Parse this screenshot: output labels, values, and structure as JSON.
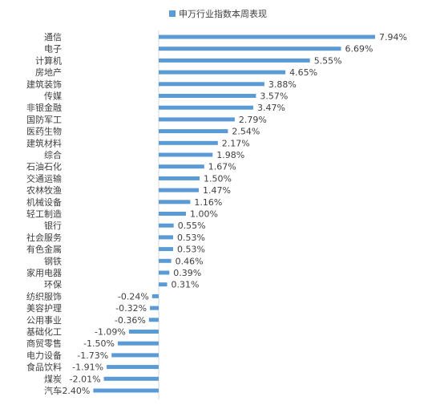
{
  "chart_data": {
    "type": "bar",
    "orientation": "horizontal",
    "legend": {
      "position": "top",
      "label": "申万行业指数本周表现"
    },
    "colors": {
      "bar": "#5b9bd5",
      "axis": "#d9d9d9",
      "text": "#404040"
    },
    "value_suffix": "%",
    "xlim": [
      -2.4,
      7.94
    ],
    "categories": [
      "通信",
      "电子",
      "计算机",
      "房地产",
      "建筑装饰",
      "传媒",
      "非银金融",
      "国防军工",
      "医药生物",
      "建筑材料",
      "综合",
      "石油石化",
      "交通运输",
      "农林牧渔",
      "机械设备",
      "轻工制造",
      "银行",
      "社会服务",
      "有色金属",
      "钢铁",
      "家用电器",
      "环保",
      "纺织服饰",
      "美容护理",
      "公用事业",
      "基础化工",
      "商贸零售",
      "电力设备",
      "食品饮料",
      "煤炭",
      "汽车"
    ],
    "values": [
      7.94,
      6.69,
      5.55,
      4.65,
      3.88,
      3.57,
      3.47,
      2.79,
      2.54,
      2.17,
      1.98,
      1.67,
      1.5,
      1.47,
      1.16,
      1.0,
      0.55,
      0.53,
      0.53,
      0.46,
      0.39,
      0.31,
      -0.24,
      -0.32,
      -0.36,
      -1.09,
      -1.5,
      -1.73,
      -1.91,
      -2.01,
      -2.4
    ]
  }
}
